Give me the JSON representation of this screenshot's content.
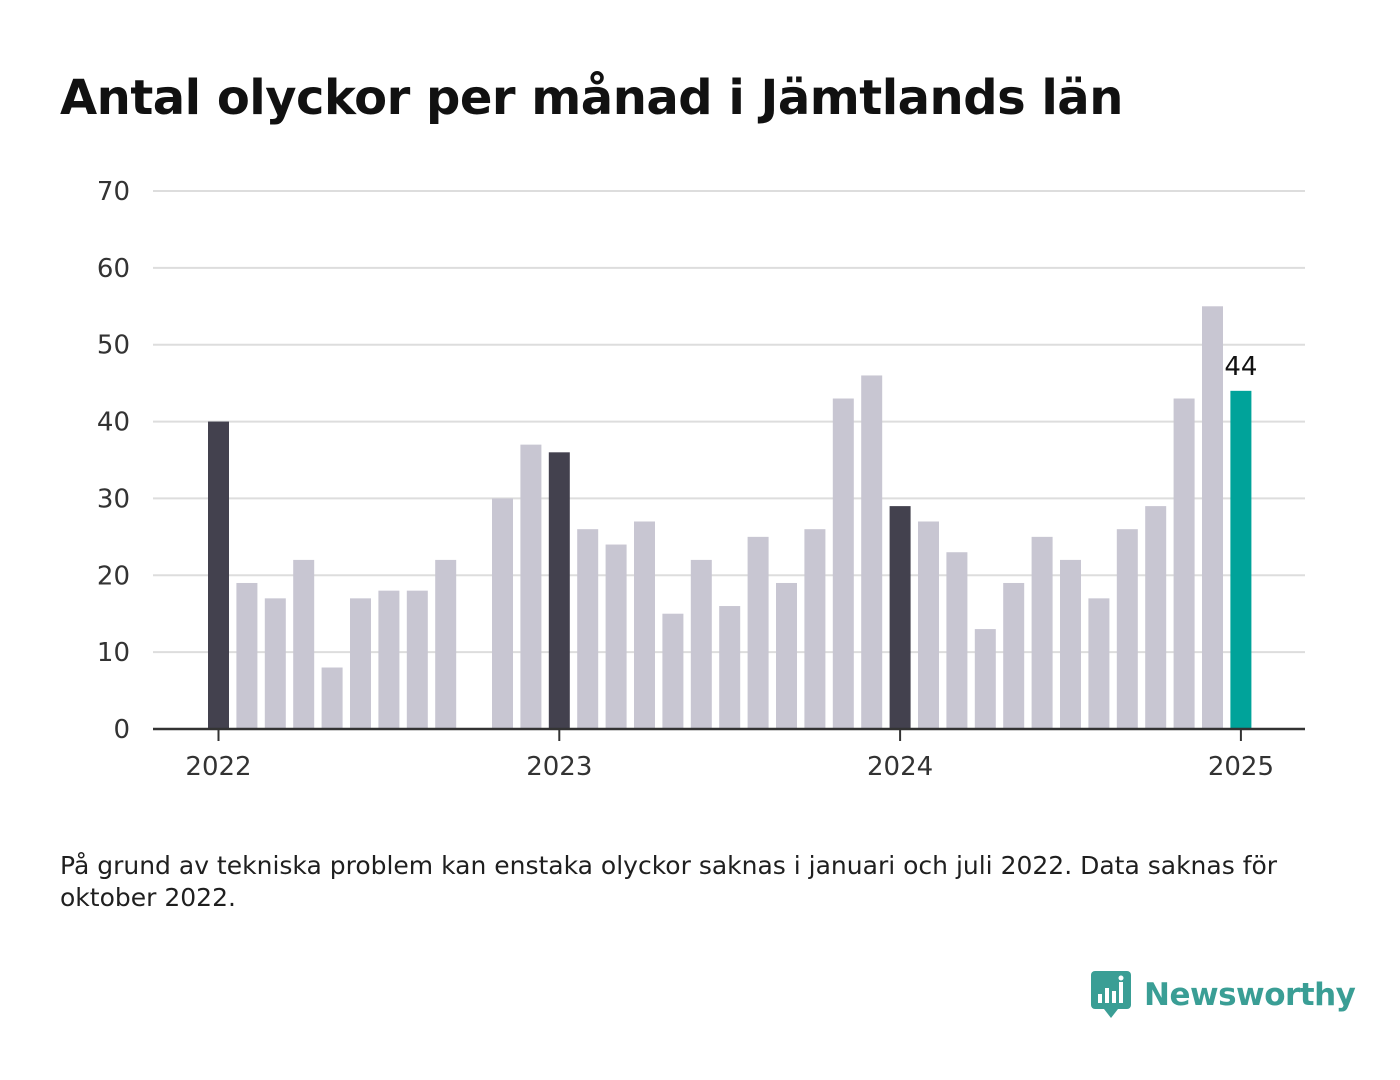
{
  "title": "Antal olyckor per månad i Jämtlands län",
  "footnote": "På grund av tekniska problem kan enstaka olyckor saknas i januari och juli 2022. Data saknas för oktober 2022.",
  "brand": {
    "name": "Newsworthy",
    "icon": "newsworthy-logo-icon"
  },
  "colors": {
    "january": "#43414e",
    "other": "#c8c6d2",
    "highlight": "#00a39a",
    "grid": "#dddddd",
    "axis": "#333333"
  },
  "chart_data": {
    "type": "bar",
    "title": "Antal olyckor per månad i Jämtlands län",
    "xlabel": "",
    "ylabel": "",
    "ylim": [
      0,
      70
    ],
    "yticks": [
      0,
      10,
      20,
      30,
      40,
      50,
      60,
      70
    ],
    "xticks": [
      "2022",
      "2023",
      "2024",
      "2025"
    ],
    "grid": true,
    "categories": [
      "2022-01",
      "2022-02",
      "2022-03",
      "2022-04",
      "2022-05",
      "2022-06",
      "2022-07",
      "2022-08",
      "2022-09",
      "2022-10",
      "2022-11",
      "2022-12",
      "2023-01",
      "2023-02",
      "2023-03",
      "2023-04",
      "2023-05",
      "2023-06",
      "2023-07",
      "2023-08",
      "2023-09",
      "2023-10",
      "2023-11",
      "2023-12",
      "2024-01",
      "2024-02",
      "2024-03",
      "2024-04",
      "2024-05",
      "2024-06",
      "2024-07",
      "2024-08",
      "2024-09",
      "2024-10",
      "2024-11",
      "2024-12",
      "2025-01"
    ],
    "values": [
      40,
      19,
      17,
      22,
      8,
      17,
      18,
      18,
      22,
      null,
      30,
      37,
      36,
      26,
      24,
      27,
      15,
      22,
      16,
      25,
      19,
      26,
      43,
      46,
      29,
      27,
      23,
      13,
      19,
      25,
      22,
      17,
      26,
      29,
      43,
      55,
      44
    ],
    "highlight": {
      "category": "2025-01",
      "label": "44"
    }
  }
}
